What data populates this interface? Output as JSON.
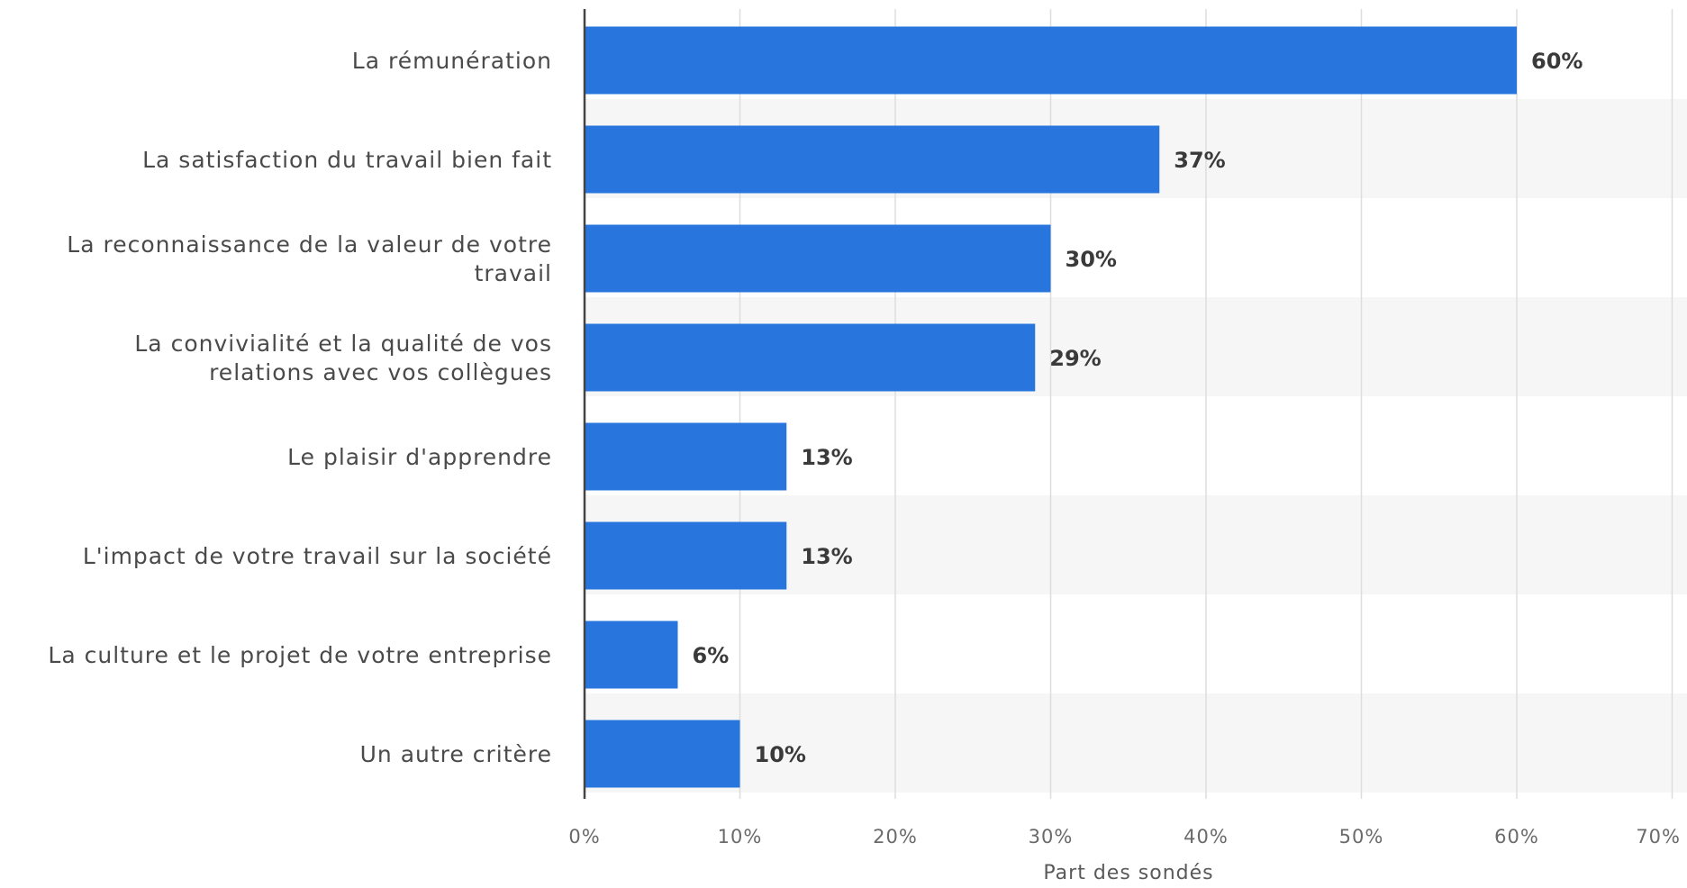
{
  "chart_data": {
    "type": "bar",
    "orientation": "horizontal",
    "categories": [
      [
        "La rémunération"
      ],
      [
        "La satisfaction du travail bien fait"
      ],
      [
        "La reconnaissance de la valeur de votre",
        "travail"
      ],
      [
        "La convivialité et la qualité de vos",
        "relations avec vos collègues"
      ],
      [
        "Le plaisir d'apprendre"
      ],
      [
        "L'impact de votre travail sur la société"
      ],
      [
        "La culture et le projet de votre entreprise"
      ],
      [
        "Un autre critère"
      ]
    ],
    "values": [
      60,
      37,
      30,
      29,
      13,
      13,
      6,
      10
    ],
    "value_labels": [
      "60%",
      "37%",
      "30%",
      "29%",
      "13%",
      "13%",
      "6%",
      "10%"
    ],
    "xticks": [
      "0%",
      "10%",
      "20%",
      "30%",
      "40%",
      "50%",
      "60%",
      "70%"
    ],
    "xlim": [
      0,
      70
    ],
    "xlabel": "Part des sondés",
    "title": "",
    "grid": true,
    "legend": "none",
    "colors": {
      "bar": "#2775dd",
      "band": "#f6f6f6",
      "grid": "#dddddd",
      "axis": "#444444"
    }
  }
}
